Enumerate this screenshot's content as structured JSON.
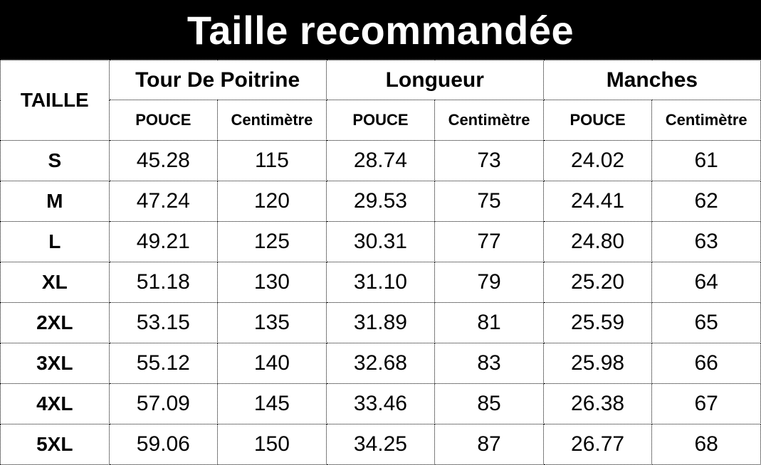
{
  "title": "Taille recommandée",
  "colors": {
    "title_bg": "#000000",
    "title_text": "#ffffff",
    "table_text": "#000000",
    "border": "#000000",
    "background": "#ffffff"
  },
  "table": {
    "corner_label": "TAILLE",
    "groups": [
      {
        "label": "Tour De Poitrine"
      },
      {
        "label": "Longueur"
      },
      {
        "label": "Manches"
      }
    ],
    "subheaders": {
      "pouce": "POUCE",
      "cm": "Centimètre"
    },
    "rows": [
      {
        "size": "S",
        "values": [
          "45.28",
          "115",
          "28.74",
          "73",
          "24.02",
          "61"
        ]
      },
      {
        "size": "M",
        "values": [
          "47.24",
          "120",
          "29.53",
          "75",
          "24.41",
          "62"
        ]
      },
      {
        "size": "L",
        "values": [
          "49.21",
          "125",
          "30.31",
          "77",
          "24.80",
          "63"
        ]
      },
      {
        "size": "XL",
        "values": [
          "51.18",
          "130",
          "31.10",
          "79",
          "25.20",
          "64"
        ]
      },
      {
        "size": "2XL",
        "values": [
          "53.15",
          "135",
          "31.89",
          "81",
          "25.59",
          "65"
        ]
      },
      {
        "size": "3XL",
        "values": [
          "55.12",
          "140",
          "32.68",
          "83",
          "25.98",
          "66"
        ]
      },
      {
        "size": "4XL",
        "values": [
          "57.09",
          "145",
          "33.46",
          "85",
          "26.38",
          "67"
        ]
      },
      {
        "size": "5XL",
        "values": [
          "59.06",
          "150",
          "34.25",
          "87",
          "26.77",
          "68"
        ]
      }
    ]
  }
}
